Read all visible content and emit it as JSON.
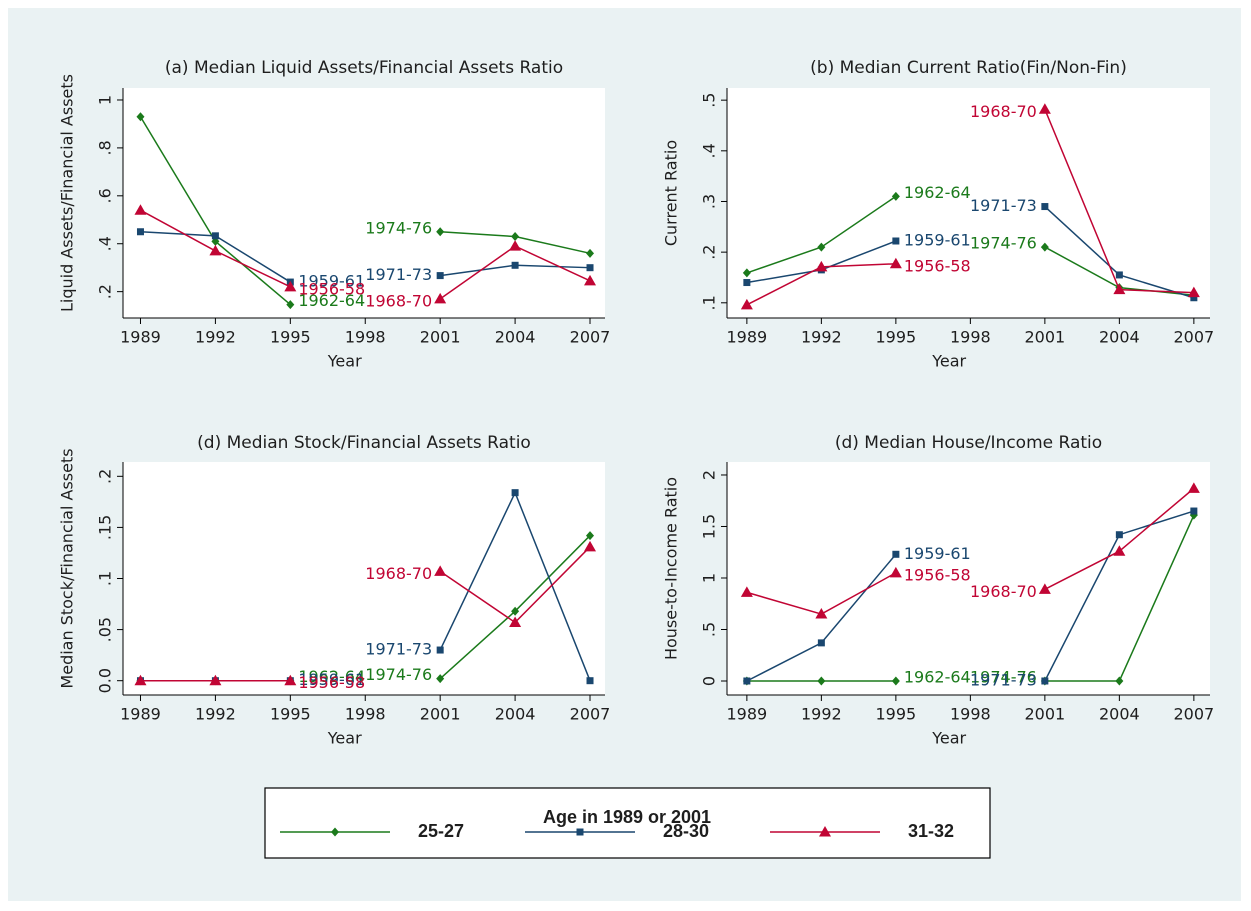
{
  "legend_title": "Age in 1989 or 2001",
  "chart_data": [
    {
      "type": "line",
      "title": "(a) Median Liquid Assets/Financial Assets Ratio",
      "x_label": "Year",
      "y_label": "Liquid Assets/Financial Assets",
      "x": [
        1989,
        1992,
        1995,
        1998,
        2001,
        2004,
        2007
      ],
      "xlim": [
        1988.3,
        2007.6
      ],
      "xticks": [
        1989,
        1992,
        1995,
        1998,
        2001,
        2004,
        2007
      ],
      "ylim": [
        0.09,
        1.05
      ],
      "yticks": [
        {
          "value": 0.2,
          "label": ".2"
        },
        {
          "value": 0.4,
          "label": ".4"
        },
        {
          "value": 0.6,
          "label": ".6"
        },
        {
          "value": 0.8,
          "label": ".8"
        },
        1
      ],
      "series": [
        {
          "name": "25-27",
          "color": "#1b7a1b",
          "marker": "diamond",
          "values": [
            0.93,
            0.41,
            0.146,
            null,
            0.45,
            0.43,
            0.36
          ],
          "annotations": [
            "1962-64",
            "1974-76"
          ]
        },
        {
          "name": "28-30",
          "color": "#1a476f",
          "marker": "square",
          "values": [
            0.45,
            0.433,
            0.24,
            null,
            0.267,
            0.31,
            0.3
          ],
          "annotations": [
            "1959-61",
            "1971-73"
          ]
        },
        {
          "name": "31-32",
          "color": "#c10534",
          "marker": "triangle",
          "values": [
            0.54,
            0.37,
            0.22,
            null,
            0.17,
            0.39,
            0.245
          ],
          "annotations": [
            "1956-58",
            "1968-70"
          ]
        }
      ]
    },
    {
      "type": "line",
      "title": "(b) Median Current Ratio(Fin/Non-Fin)",
      "x_label": "Year",
      "y_label": "Current Ratio",
      "x": [
        1989,
        1992,
        1995,
        1998,
        2001,
        2004,
        2007
      ],
      "xlim": [
        1988.2,
        2007.65
      ],
      "xticks": [
        1989,
        1992,
        1995,
        1998,
        2001,
        2004,
        2007
      ],
      "ylim": [
        0.07,
        0.524
      ],
      "yticks": [
        {
          "value": 0.1,
          "label": ".1"
        },
        {
          "value": 0.2,
          "label": ".2"
        },
        {
          "value": 0.3,
          "label": ".3"
        },
        {
          "value": 0.4,
          "label": ".4"
        },
        {
          "value": 0.5,
          "label": ".5"
        }
      ],
      "series": [
        {
          "name": "25-27",
          "color": "#1b7a1b",
          "marker": "diamond",
          "values": [
            0.159,
            0.21,
            0.31,
            null,
            0.21,
            0.13,
            0.115
          ],
          "annotations": [
            "1962-64",
            "1974-76"
          ]
        },
        {
          "name": "28-30",
          "color": "#1a476f",
          "marker": "square",
          "values": [
            0.14,
            0.165,
            0.222,
            null,
            0.29,
            0.155,
            0.11
          ],
          "annotations": [
            "1959-61",
            "1971-73"
          ]
        },
        {
          "name": "31-32",
          "color": "#c10534",
          "marker": "triangle",
          "values": [
            0.096,
            0.171,
            0.177,
            null,
            0.482,
            0.126,
            0.12
          ],
          "annotations": [
            "1956-58",
            "1968-70"
          ]
        }
      ]
    },
    {
      "type": "line",
      "title": "(d) Median Stock/Financial Assets Ratio",
      "x_label": "Year",
      "y_label": "Median Stock/Financial Assets",
      "x": [
        1989,
        1992,
        1995,
        1998,
        2001,
        2004,
        2007
      ],
      "xlim": [
        1988.3,
        2007.6
      ],
      "xticks": [
        1989,
        1992,
        1995,
        1998,
        2001,
        2004,
        2007
      ],
      "ylim": [
        -0.014,
        0.214
      ],
      "yticks": [
        {
          "value": 0,
          "label": "0.0"
        },
        {
          "value": 0.05,
          "label": ".05"
        },
        {
          "value": 0.1,
          "label": ".1"
        },
        {
          "value": 0.15,
          "label": ".15"
        },
        {
          "value": 0.2,
          "label": ".2"
        }
      ],
      "series": [
        {
          "name": "25-27",
          "color": "#1b7a1b",
          "marker": "diamond",
          "values": [
            0,
            0,
            0,
            null,
            0.002,
            0.068,
            0.142
          ],
          "annotations": [
            "1962-64",
            "1974-76"
          ]
        },
        {
          "name": "28-30",
          "color": "#1a476f",
          "marker": "square",
          "values": [
            0,
            0,
            0,
            null,
            0.03,
            0.184,
            0
          ],
          "annotations": [
            "1959-61",
            "1971-73"
          ]
        },
        {
          "name": "31-32",
          "color": "#c10534",
          "marker": "triangle",
          "values": [
            0,
            0,
            0,
            null,
            0.107,
            0.057,
            0.131
          ],
          "annotations": [
            "1956-58",
            "1968-70"
          ]
        }
      ]
    },
    {
      "type": "line",
      "title": "(d) Median House/Income Ratio",
      "x_label": "Year",
      "y_label": "House-to-Income Ratio",
      "x": [
        1989,
        1992,
        1995,
        1998,
        2001,
        2004,
        2007
      ],
      "xlim": [
        1988.2,
        2007.65
      ],
      "xticks": [
        1989,
        1992,
        1995,
        1998,
        2001,
        2004,
        2007
      ],
      "ylim": [
        -0.136,
        2.126
      ],
      "yticks": [
        0,
        {
          "value": 0.5,
          "label": ".5"
        },
        1,
        1.5,
        2
      ],
      "series": [
        {
          "name": "25-27",
          "color": "#1b7a1b",
          "marker": "diamond",
          "values": [
            0,
            0,
            0,
            null,
            0,
            0,
            1.61
          ],
          "annotations": [
            "1962-64",
            "1974-76"
          ]
        },
        {
          "name": "28-30",
          "color": "#1a476f",
          "marker": "square",
          "values": [
            0,
            0.37,
            1.23,
            null,
            0,
            1.42,
            1.65
          ],
          "annotations": [
            "1959-61",
            "1971-73"
          ]
        },
        {
          "name": "31-32",
          "color": "#c10534",
          "marker": "triangle",
          "values": [
            0.86,
            0.65,
            1.05,
            null,
            0.89,
            1.26,
            1.87
          ],
          "annotations": [
            "1956-58",
            "1968-70"
          ]
        }
      ]
    }
  ]
}
